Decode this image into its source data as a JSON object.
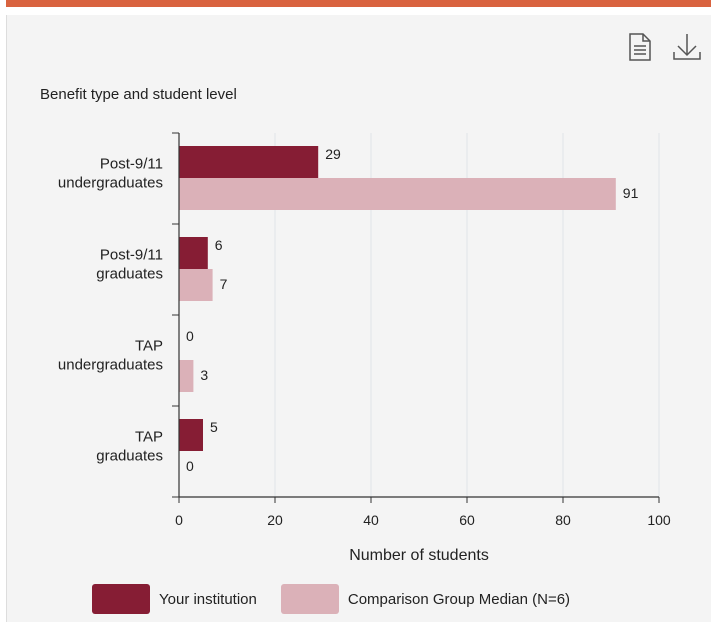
{
  "toolbar": {
    "icons": [
      "document-icon",
      "download-icon"
    ]
  },
  "colors": {
    "accent_bar": "#d9633f",
    "your_institution": "#861d34",
    "comparison": "#dbb1b8"
  },
  "chart_data": {
    "type": "bar",
    "orientation": "horizontal",
    "title": "Benefit type and student level",
    "xlabel": "Number of students",
    "ylabel": "",
    "xlim": [
      0,
      100
    ],
    "xticks": [
      0,
      20,
      40,
      60,
      80,
      100
    ],
    "grid": true,
    "legend_position": "bottom",
    "categories": [
      [
        "Post-9/11",
        "undergraduates"
      ],
      [
        "Post-9/11",
        "graduates"
      ],
      [
        "TAP",
        "undergraduates"
      ],
      [
        "TAP",
        "graduates"
      ]
    ],
    "series": [
      {
        "name": "Your institution",
        "color": "#861d34",
        "values": [
          29,
          6,
          0,
          5
        ]
      },
      {
        "name": "Comparison Group Median (N=6)",
        "color": "#dbb1b8",
        "values": [
          91,
          7,
          3,
          0
        ]
      }
    ]
  }
}
